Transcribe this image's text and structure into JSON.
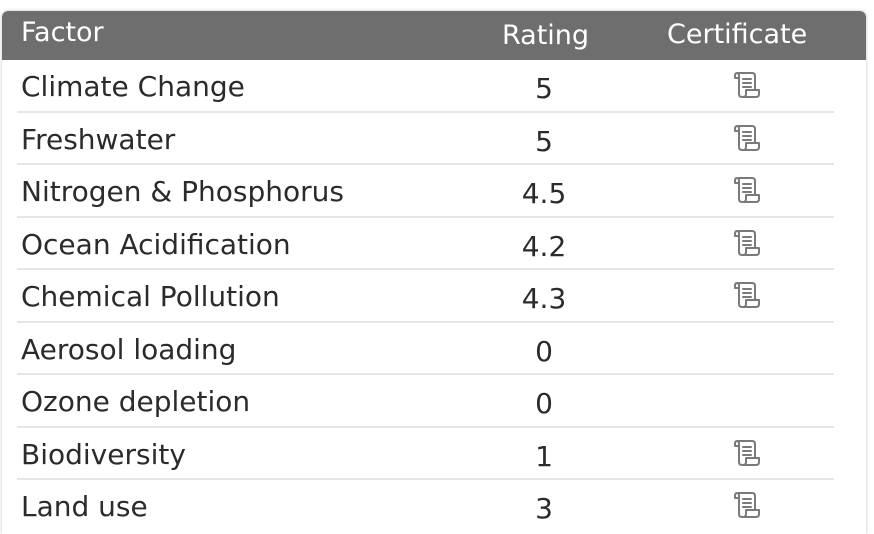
{
  "table": {
    "columns": {
      "factor": "Factor",
      "rating": "Rating",
      "certificate": "Certificate"
    },
    "rows": [
      {
        "factor": "Climate Change",
        "rating": "5",
        "certificate": true
      },
      {
        "factor": "Freshwater",
        "rating": "5",
        "certificate": true
      },
      {
        "factor": "Nitrogen & Phosphorus",
        "rating": "4.5",
        "certificate": true
      },
      {
        "factor": "Ocean Acidification",
        "rating": "4.2",
        "certificate": true
      },
      {
        "factor": "Chemical Pollution",
        "rating": "4.3",
        "certificate": true
      },
      {
        "factor": "Aerosol loading",
        "rating": "0",
        "certificate": false
      },
      {
        "factor": "Ozone depletion",
        "rating": "0",
        "certificate": false
      },
      {
        "factor": "Biodiversity",
        "rating": "1",
        "certificate": true
      },
      {
        "factor": "Land use",
        "rating": "3",
        "certificate": true
      }
    ],
    "icon": "certificate-scroll-icon",
    "colors": {
      "header_bg": "#6e6e6e",
      "header_text": "#ffffff",
      "row_text": "#2b2b2b",
      "divider": "#e6e6e6",
      "icon": "#7a7a7a"
    }
  }
}
